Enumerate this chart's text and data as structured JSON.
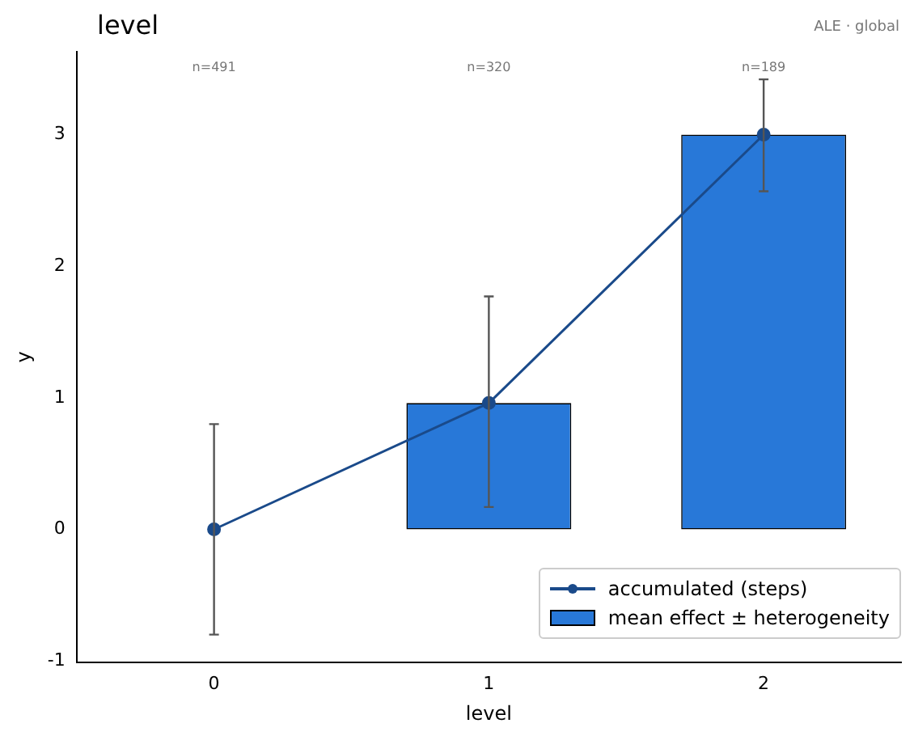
{
  "chart_data": {
    "type": "bar",
    "title": "level",
    "subtitle": "ALE · global",
    "xlabel": "level",
    "ylabel": "y",
    "categories": [
      "0",
      "1",
      "2"
    ],
    "series": [
      {
        "name": "accumulated (steps)",
        "type": "line",
        "color": "#1a4a8a",
        "values": [
          0,
          0.96,
          3.0
        ],
        "marker": "circle"
      },
      {
        "name": "mean effect ± heterogeneity",
        "color": "#2878d8",
        "values": [
          0,
          0.96,
          3.0
        ],
        "errors": [
          [
            -0.8,
            0.8
          ],
          [
            0.17,
            1.77
          ],
          [
            2.57,
            3.42
          ]
        ]
      }
    ],
    "ylim": [
      -1.01,
      3.63
    ],
    "yticks": [
      -1,
      0,
      1,
      2,
      3
    ],
    "grid": false,
    "legend": "bottom right",
    "annotations": [
      "n=491",
      "n=320",
      "n=189"
    ]
  }
}
